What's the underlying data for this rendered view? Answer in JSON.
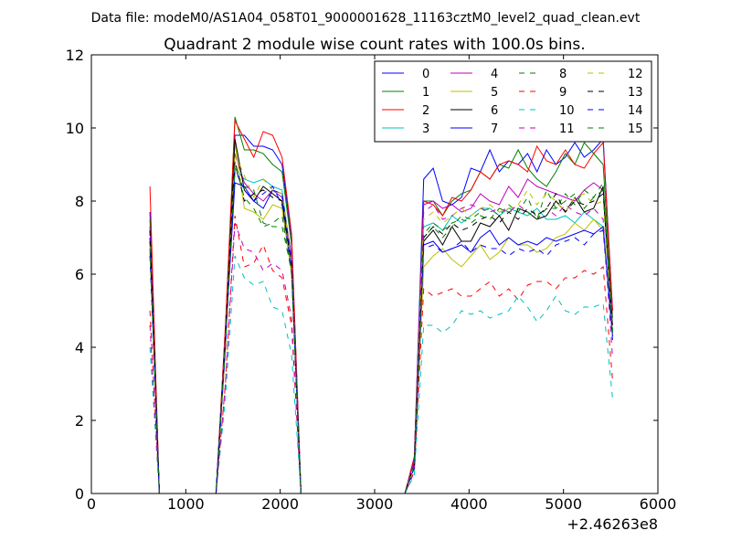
{
  "header": {
    "data_file_label": "Data file: modeM0/AS1A04_058T01_9000001628_11163cztM0_level2_quad_clean.evt",
    "title": "Quadrant 2 module wise count rates with 100.0s bins."
  },
  "chart_data": {
    "type": "line",
    "title": "Quadrant 2 module wise count rates with 100.0s bins.",
    "xlim": [
      0,
      6000
    ],
    "ylim": [
      0,
      12
    ],
    "x_offset_label": "+2.46263e8",
    "x_ticks": [
      0,
      1000,
      2000,
      3000,
      4000,
      5000,
      6000
    ],
    "y_ticks": [
      0,
      2,
      4,
      6,
      8,
      10,
      12
    ],
    "grid": false,
    "legend_placement": "top-right",
    "x": [
      620,
      720,
      820,
      920,
      1020,
      1120,
      1220,
      1320,
      1420,
      1520,
      1620,
      1720,
      1820,
      1920,
      2020,
      2120,
      2220,
      2320,
      2420,
      2520,
      2620,
      2720,
      2820,
      2920,
      3020,
      3120,
      3220,
      3320,
      3420,
      3520,
      3620,
      3720,
      3820,
      3920,
      4020,
      4120,
      4220,
      4320,
      4420,
      4520,
      4620,
      4720,
      4820,
      4920,
      5020,
      5120,
      5220,
      5320,
      5420,
      5520
    ],
    "series": [
      {
        "name": "0",
        "color": "#0000ff",
        "dashed": false,
        "values": [
          7.7,
          0.0,
          0.0,
          0.0,
          0.0,
          0.0,
          0.0,
          0.0,
          4.5,
          9.8,
          9.8,
          9.5,
          9.5,
          9.4,
          9.0,
          7.0,
          0.0,
          0.0,
          0.0,
          0.0,
          0.0,
          0.0,
          0.0,
          0.0,
          0.0,
          0.0,
          0.0,
          0.0,
          1.0,
          8.6,
          8.9,
          8.0,
          7.9,
          8.1,
          8.9,
          8.8,
          9.4,
          8.8,
          9.1,
          9.0,
          9.3,
          8.8,
          9.4,
          9.0,
          9.2,
          9.6,
          9.2,
          9.4,
          9.7,
          5.0
        ]
      },
      {
        "name": "1",
        "color": "#008000",
        "dashed": false,
        "values": [
          7.5,
          0.0,
          0.0,
          0.0,
          0.0,
          0.0,
          0.0,
          0.0,
          4.3,
          10.3,
          9.4,
          9.4,
          9.3,
          9.0,
          8.8,
          6.8,
          0.0,
          0.0,
          0.0,
          0.0,
          0.0,
          0.0,
          0.0,
          0.0,
          0.0,
          0.0,
          0.0,
          0.0,
          0.9,
          8.0,
          8.0,
          7.6,
          8.0,
          8.2,
          8.3,
          8.8,
          8.6,
          9.0,
          8.9,
          9.4,
          8.9,
          8.6,
          8.4,
          8.8,
          9.3,
          9.0,
          9.6,
          9.3,
          9.0,
          4.8
        ]
      },
      {
        "name": "2",
        "color": "#ff0000",
        "dashed": false,
        "values": [
          8.4,
          0.0,
          0.0,
          0.0,
          0.0,
          0.0,
          0.0,
          0.0,
          4.6,
          10.2,
          9.7,
          9.2,
          9.9,
          9.8,
          9.2,
          7.1,
          0.0,
          0.0,
          0.0,
          0.0,
          0.0,
          0.0,
          0.0,
          0.0,
          0.0,
          0.0,
          0.0,
          0.0,
          1.0,
          8.0,
          7.9,
          7.6,
          8.1,
          8.0,
          8.3,
          8.8,
          8.6,
          9.0,
          9.1,
          9.0,
          8.8,
          9.5,
          9.1,
          9.0,
          9.4,
          9.0,
          8.9,
          9.3,
          9.6,
          5.0
        ]
      },
      {
        "name": "3",
        "color": "#00bfbf",
        "dashed": false,
        "values": [
          7.0,
          0.0,
          0.0,
          0.0,
          0.0,
          0.0,
          0.0,
          0.0,
          4.2,
          8.9,
          8.6,
          8.5,
          8.6,
          8.4,
          8.3,
          6.3,
          0.0,
          0.0,
          0.0,
          0.0,
          0.0,
          0.0,
          0.0,
          0.0,
          0.0,
          0.0,
          0.0,
          0.0,
          0.8,
          7.3,
          7.4,
          7.2,
          7.6,
          7.4,
          7.6,
          7.8,
          7.8,
          7.6,
          7.8,
          7.7,
          7.6,
          7.8,
          7.5,
          7.5,
          7.6,
          7.4,
          7.7,
          7.5,
          7.3,
          4.4
        ]
      },
      {
        "name": "4",
        "color": "#bf00bf",
        "dashed": false,
        "values": [
          7.3,
          0.0,
          0.0,
          0.0,
          0.0,
          0.0,
          0.0,
          0.0,
          4.3,
          9.3,
          8.5,
          8.2,
          8.0,
          8.3,
          8.1,
          6.5,
          0.0,
          0.0,
          0.0,
          0.0,
          0.0,
          0.0,
          0.0,
          0.0,
          0.0,
          0.0,
          0.0,
          0.0,
          0.9,
          7.9,
          8.0,
          7.8,
          7.9,
          7.7,
          7.8,
          8.2,
          8.0,
          7.9,
          8.4,
          8.1,
          8.6,
          8.4,
          8.3,
          8.2,
          8.1,
          8.0,
          8.3,
          8.5,
          8.3,
          4.6
        ]
      },
      {
        "name": "5",
        "color": "#bfbf00",
        "dashed": false,
        "values": [
          6.6,
          0.0,
          0.0,
          0.0,
          0.0,
          0.0,
          0.0,
          0.0,
          3.9,
          9.6,
          7.8,
          7.7,
          7.5,
          7.9,
          7.8,
          6.0,
          0.0,
          0.0,
          0.0,
          0.0,
          0.0,
          0.0,
          0.0,
          0.0,
          0.0,
          0.0,
          0.0,
          0.0,
          0.7,
          6.2,
          6.5,
          6.7,
          6.4,
          6.2,
          6.5,
          6.8,
          6.4,
          6.6,
          7.0,
          6.8,
          6.8,
          6.6,
          6.7,
          7.0,
          7.1,
          7.4,
          7.2,
          7.5,
          7.2,
          4.3
        ]
      },
      {
        "name": "6",
        "color": "#000000",
        "dashed": false,
        "values": [
          6.9,
          0.0,
          0.0,
          0.0,
          0.0,
          0.0,
          0.0,
          0.0,
          4.1,
          9.7,
          8.3,
          8.0,
          8.4,
          8.2,
          8.0,
          6.3,
          0.0,
          0.0,
          0.0,
          0.0,
          0.0,
          0.0,
          0.0,
          0.0,
          0.0,
          0.0,
          0.0,
          0.0,
          0.8,
          6.9,
          7.2,
          6.8,
          7.3,
          6.9,
          6.9,
          7.4,
          7.3,
          7.6,
          7.2,
          7.8,
          7.7,
          7.5,
          7.6,
          8.0,
          7.7,
          8.1,
          7.7,
          7.8,
          8.4,
          4.4
        ]
      },
      {
        "name": "7",
        "color": "#0000ff",
        "dashed": false,
        "values": [
          7.0,
          0.0,
          0.0,
          0.0,
          0.0,
          0.0,
          0.0,
          0.0,
          4.2,
          8.5,
          8.4,
          8.0,
          7.8,
          8.3,
          8.2,
          6.3,
          0.0,
          0.0,
          0.0,
          0.0,
          0.0,
          0.0,
          0.0,
          0.0,
          0.0,
          0.0,
          0.0,
          0.0,
          0.8,
          6.8,
          6.9,
          6.6,
          6.7,
          6.8,
          6.6,
          7.0,
          7.2,
          6.8,
          7.0,
          6.8,
          6.9,
          6.8,
          7.0,
          6.9,
          7.0,
          7.1,
          7.2,
          7.1,
          7.3,
          4.3
        ]
      },
      {
        "name": "8",
        "color": "#008000",
        "dashed": true,
        "values": [
          7.2,
          0.0,
          0.0,
          0.0,
          0.0,
          0.0,
          0.0,
          0.0,
          4.2,
          8.8,
          8.4,
          8.3,
          7.4,
          7.3,
          7.3,
          6.1,
          0.0,
          0.0,
          0.0,
          0.0,
          0.0,
          0.0,
          0.0,
          0.0,
          0.0,
          0.0,
          0.0,
          0.0,
          0.8,
          7.0,
          7.3,
          7.0,
          7.3,
          7.6,
          7.5,
          7.7,
          7.8,
          7.6,
          7.9,
          7.7,
          8.1,
          7.5,
          8.3,
          7.8,
          8.2,
          7.9,
          8.3,
          8.1,
          8.5,
          4.5
        ]
      },
      {
        "name": "9",
        "color": "#ff0000",
        "dashed": true,
        "values": [
          5.0,
          0.0,
          0.0,
          0.0,
          0.0,
          0.0,
          0.0,
          0.0,
          3.0,
          7.6,
          6.2,
          6.3,
          6.8,
          6.1,
          5.9,
          4.6,
          0.0,
          0.0,
          0.0,
          0.0,
          0.0,
          0.0,
          0.0,
          0.0,
          0.0,
          0.0,
          0.0,
          0.0,
          0.6,
          5.6,
          5.4,
          5.5,
          5.6,
          5.4,
          5.4,
          5.6,
          5.8,
          5.4,
          5.6,
          5.3,
          5.7,
          5.8,
          5.8,
          5.6,
          5.9,
          5.9,
          6.1,
          6.0,
          6.2,
          3.1
        ]
      },
      {
        "name": "10",
        "color": "#00bfbf",
        "dashed": true,
        "values": [
          4.0,
          0.0,
          0.0,
          0.0,
          0.0,
          0.0,
          0.0,
          0.0,
          2.6,
          6.5,
          5.9,
          5.7,
          5.8,
          5.1,
          5.0,
          3.8,
          0.0,
          0.0,
          0.0,
          0.0,
          0.0,
          0.0,
          0.0,
          0.0,
          0.0,
          0.0,
          0.0,
          0.0,
          0.5,
          4.6,
          4.6,
          4.4,
          4.6,
          5.0,
          4.9,
          5.0,
          4.8,
          4.9,
          5.0,
          5.4,
          5.1,
          4.7,
          5.0,
          5.4,
          5.0,
          4.9,
          5.1,
          5.1,
          5.2,
          2.6
        ]
      },
      {
        "name": "11",
        "color": "#bf00bf",
        "dashed": true,
        "values": [
          4.6,
          0.0,
          0.0,
          0.0,
          0.0,
          0.0,
          0.0,
          0.0,
          3.0,
          7.4,
          6.7,
          6.6,
          6.1,
          6.3,
          6.1,
          4.8,
          0.0,
          0.0,
          0.0,
          0.0,
          0.0,
          0.0,
          0.0,
          0.0,
          0.0,
          0.0,
          0.0,
          0.0,
          0.6,
          7.7,
          7.9,
          7.5,
          7.6,
          7.8,
          7.9,
          7.8,
          7.7,
          7.8,
          7.7,
          7.9,
          7.7,
          7.5,
          7.8,
          7.6,
          7.9,
          7.7,
          7.6,
          7.8,
          7.5,
          3.7
        ]
      },
      {
        "name": "12",
        "color": "#bfbf00",
        "dashed": true,
        "values": [
          6.8,
          0.0,
          0.0,
          0.0,
          0.0,
          0.0,
          0.0,
          0.0,
          4.2,
          9.3,
          8.7,
          8.1,
          8.6,
          8.3,
          8.2,
          6.3,
          0.0,
          0.0,
          0.0,
          0.0,
          0.0,
          0.0,
          0.0,
          0.0,
          0.0,
          0.0,
          0.0,
          0.0,
          0.8,
          7.5,
          7.7,
          7.4,
          7.6,
          7.8,
          7.6,
          7.8,
          7.9,
          7.7,
          7.8,
          7.9,
          8.3,
          7.9,
          8.2,
          8.0,
          7.7,
          8.1,
          8.2,
          7.9,
          8.0,
          4.4
        ]
      },
      {
        "name": "13",
        "color": "#000000",
        "dashed": true,
        "values": [
          7.2,
          0.0,
          0.0,
          0.0,
          0.0,
          0.0,
          0.0,
          0.0,
          4.3,
          9.1,
          8.0,
          8.2,
          8.3,
          8.1,
          8.0,
          6.2,
          0.0,
          0.0,
          0.0,
          0.0,
          0.0,
          0.0,
          0.0,
          0.0,
          0.0,
          0.0,
          0.0,
          0.0,
          0.8,
          7.0,
          7.3,
          7.1,
          7.4,
          7.2,
          7.3,
          7.5,
          7.6,
          7.4,
          7.7,
          7.5,
          7.8,
          7.6,
          7.8,
          8.2,
          7.7,
          8.0,
          7.9,
          8.0,
          8.2,
          4.5
        ]
      },
      {
        "name": "14",
        "color": "#0000ff",
        "dashed": true,
        "values": [
          6.5,
          0.0,
          0.0,
          0.0,
          0.0,
          0.0,
          0.0,
          0.0,
          4.0,
          8.9,
          8.3,
          8.0,
          8.2,
          8.4,
          7.9,
          6.1,
          0.0,
          0.0,
          0.0,
          0.0,
          0.0,
          0.0,
          0.0,
          0.0,
          0.0,
          0.0,
          0.0,
          0.0,
          0.7,
          6.7,
          6.8,
          6.6,
          6.7,
          6.9,
          6.6,
          6.8,
          6.7,
          6.7,
          6.5,
          6.7,
          6.6,
          6.7,
          6.5,
          6.8,
          6.9,
          7.0,
          6.8,
          7.1,
          7.2,
          4.2
        ]
      },
      {
        "name": "15",
        "color": "#008000",
        "dashed": true,
        "values": [
          6.7,
          0.0,
          0.0,
          0.0,
          0.0,
          0.0,
          0.0,
          0.0,
          4.1,
          9.0,
          8.1,
          7.8,
          7.3,
          7.4,
          7.6,
          6.0,
          0.0,
          0.0,
          0.0,
          0.0,
          0.0,
          0.0,
          0.0,
          0.0,
          0.0,
          0.0,
          0.0,
          0.0,
          0.8,
          7.1,
          7.4,
          7.2,
          7.4,
          7.5,
          7.4,
          7.6,
          7.5,
          7.8,
          7.7,
          7.8,
          7.7,
          7.5,
          7.8,
          7.8,
          8.0,
          8.2,
          7.8,
          8.1,
          8.3,
          4.4
        ]
      }
    ]
  }
}
